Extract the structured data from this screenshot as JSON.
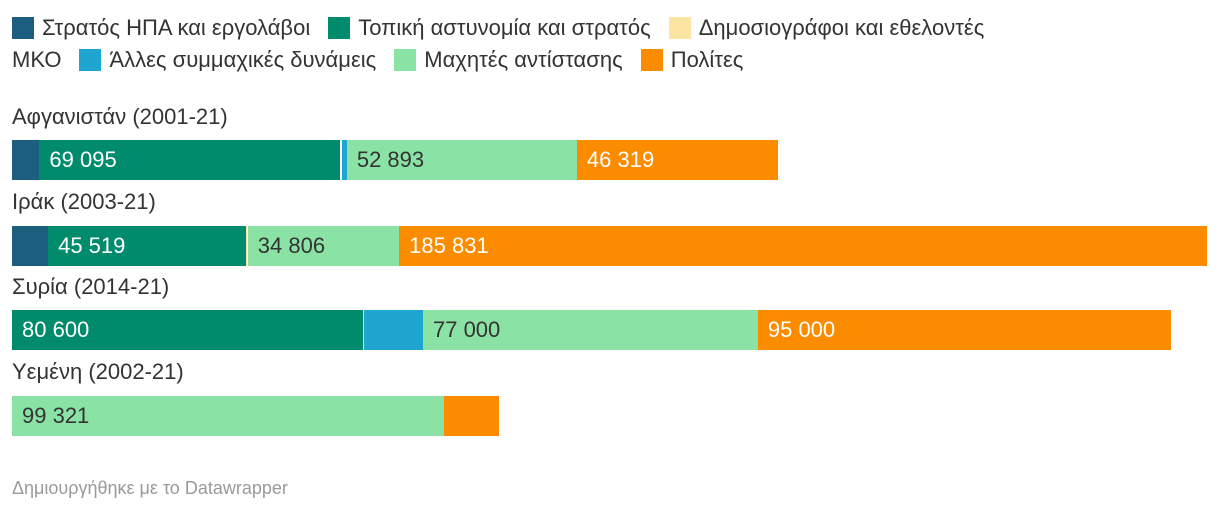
{
  "chart_data": {
    "type": "bar",
    "orientation": "horizontal",
    "stacked": true,
    "categories": [
      "Αφγανιστάν (2001-21)",
      "Ιράκ (2003-21)",
      "Συρία (2014-21)",
      "Υεμένη (2002-21)"
    ],
    "series": [
      {
        "name": "Στρατός ΗΠΑ και εργολάβοι",
        "color": "#1b5e7e",
        "values": [
          6300,
          8300,
          0,
          0
        ]
      },
      {
        "name": "Τοπική αστυνομία και στρατός",
        "color": "#008b6d",
        "values": [
          69095,
          45519,
          80600,
          0
        ]
      },
      {
        "name": "Δημοσιογράφοι και εθελοντές",
        "color": "#fde4a3",
        "values": [
          100,
          300,
          400,
          0
        ]
      },
      {
        "name": "ΜΚΟ",
        "color": "#ffffff",
        "values": [
          400,
          100,
          0,
          0
        ]
      },
      {
        "name": "Άλλες συμμαχικές δυνάμεις",
        "color": "#1ea5d0",
        "values": [
          1100,
          0,
          13500,
          0
        ]
      },
      {
        "name": "Μαχητές αντίστασης",
        "color": "#8ae2a5",
        "values": [
          52893,
          34806,
          77000,
          99321
        ]
      },
      {
        "name": "Πολίτες",
        "color": "#fb8c00",
        "values": [
          46319,
          185831,
          95000,
          12690
        ]
      }
    ],
    "data_labels": [
      [
        null,
        "69 095",
        null,
        null,
        null,
        "52 893",
        "46 319"
      ],
      [
        null,
        "45 519",
        null,
        null,
        null,
        "34 806",
        "185 831"
      ],
      [
        null,
        "80 600",
        null,
        null,
        null,
        "77 000",
        "95 000"
      ],
      [
        null,
        null,
        null,
        null,
        null,
        "99 321",
        null
      ]
    ],
    "xlim": [
      0,
      275000
    ],
    "footer": "Δημιουργήθηκε με το Datawrapper"
  }
}
